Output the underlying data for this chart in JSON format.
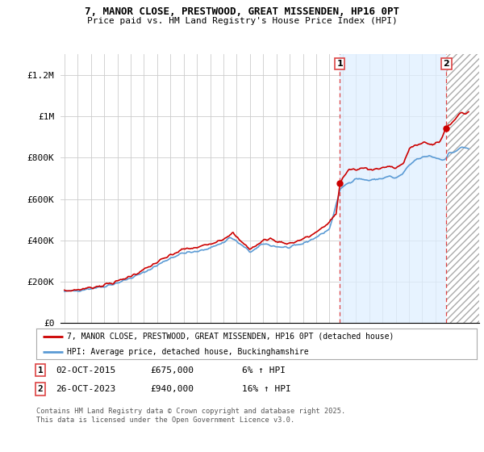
{
  "title": "7, MANOR CLOSE, PRESTWOOD, GREAT MISSENDEN, HP16 0PT",
  "subtitle": "Price paid vs. HM Land Registry's House Price Index (HPI)",
  "ylabel_ticks": [
    "£0",
    "£200K",
    "£400K",
    "£600K",
    "£800K",
    "£1M",
    "£1.2M"
  ],
  "ytick_values": [
    0,
    200000,
    400000,
    600000,
    800000,
    1000000,
    1200000
  ],
  "ylim": [
    0,
    1300000
  ],
  "legend1_label": "7, MANOR CLOSE, PRESTWOOD, GREAT MISSENDEN, HP16 0PT (detached house)",
  "legend2_label": "HPI: Average price, detached house, Buckinghamshire",
  "annotation1_date": "02-OCT-2015",
  "annotation1_price": "£675,000",
  "annotation1_hpi": "6% ↑ HPI",
  "annotation2_date": "26-OCT-2023",
  "annotation2_price": "£940,000",
  "annotation2_hpi": "16% ↑ HPI",
  "footer": "Contains HM Land Registry data © Crown copyright and database right 2025.\nThis data is licensed under the Open Government Licence v3.0.",
  "property_color": "#cc0000",
  "hpi_color": "#5b9bd5",
  "hpi_fill_color": "#ddeeff",
  "vline_color": "#dd4444",
  "background_color": "#ffffff",
  "grid_color": "#cccccc",
  "sale1_x": 2015.79,
  "sale2_x": 2023.83,
  "sale1_y": 675000,
  "sale2_y": 940000,
  "xlim_left": 1994.7,
  "xlim_right": 2026.3
}
